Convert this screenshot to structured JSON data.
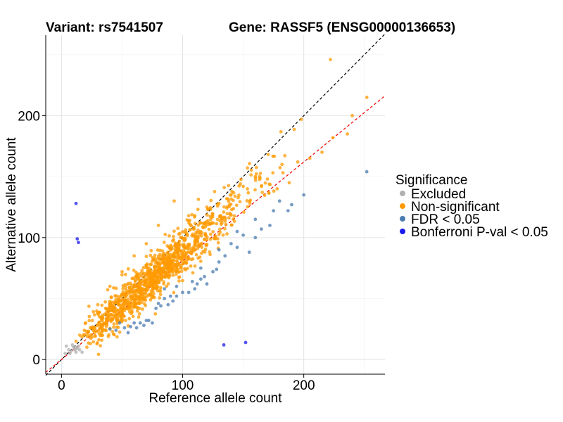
{
  "chart_data": {
    "type": "scatter",
    "title_left": "Variant: rs7541507",
    "title_right": "Gene: RASSF5 (ENSG00000136653)",
    "xlabel": "Reference allele count",
    "ylabel": "Alternative allele count",
    "xlim": [
      -13,
      267
    ],
    "ylim": [
      -12,
      266
    ],
    "x_ticks": [
      0,
      100,
      200
    ],
    "y_ticks": [
      0,
      100,
      200
    ],
    "grid": true,
    "legend": {
      "title": "Significance",
      "position": "right",
      "entries": [
        {
          "label": "Excluded",
          "color": "#b0b0b0"
        },
        {
          "label": "Non-significant",
          "color": "#ff9900"
        },
        {
          "label": "FDR < 0.05",
          "color": "#4a7bb0"
        },
        {
          "label": "Bonferroni P-val < 0.05",
          "color": "#1a1aee"
        }
      ]
    },
    "reference_lines": [
      {
        "name": "identity",
        "slope": 1.0,
        "intercept": 0,
        "color": "#000000",
        "dash": "dashed"
      },
      {
        "name": "fit",
        "slope": 0.81,
        "intercept": 0,
        "color": "#ee0000",
        "dash": "dashed"
      }
    ],
    "series": [
      {
        "name": "Excluded",
        "color": "#b0b0b0",
        "points": [
          [
            3,
            5
          ],
          [
            4,
            11
          ],
          [
            6,
            8
          ],
          [
            8,
            7
          ],
          [
            9,
            12
          ],
          [
            10,
            10
          ],
          [
            11,
            8
          ],
          [
            12,
            6
          ],
          [
            13,
            9
          ],
          [
            14,
            11
          ],
          [
            15,
            8
          ],
          [
            17,
            6
          ],
          [
            7,
            5
          ],
          [
            12,
            10
          ]
        ]
      },
      {
        "name": "Bonferroni P-val < 0.05",
        "color": "#1a1aee",
        "points": [
          [
            12,
            128
          ],
          [
            13,
            99
          ],
          [
            14,
            96
          ],
          [
            134,
            12
          ],
          [
            152,
            14
          ]
        ]
      },
      {
        "name": "FDR < 0.05",
        "color": "#4a7bb0",
        "points": [
          [
            252,
            154
          ],
          [
            200,
            135
          ],
          [
            190,
            127
          ],
          [
            187,
            122
          ],
          [
            180,
            130
          ],
          [
            175,
            122
          ],
          [
            172,
            110
          ],
          [
            165,
            107
          ],
          [
            160,
            100
          ],
          [
            155,
            88
          ],
          [
            150,
            102
          ],
          [
            145,
            92
          ],
          [
            140,
            95
          ],
          [
            135,
            85
          ],
          [
            130,
            80
          ],
          [
            128,
            74
          ],
          [
            125,
            72
          ],
          [
            120,
            62
          ],
          [
            118,
            68
          ],
          [
            115,
            66
          ],
          [
            112,
            62
          ],
          [
            110,
            58
          ],
          [
            108,
            64
          ],
          [
            105,
            55
          ],
          [
            100,
            55
          ],
          [
            95,
            52
          ],
          [
            92,
            48
          ],
          [
            90,
            52
          ],
          [
            88,
            45
          ],
          [
            85,
            50
          ],
          [
            82,
            44
          ],
          [
            80,
            46
          ],
          [
            78,
            42
          ],
          [
            75,
            30
          ],
          [
            72,
            32
          ],
          [
            70,
            32
          ],
          [
            68,
            28
          ],
          [
            65,
            30
          ],
          [
            62,
            26
          ],
          [
            60,
            30
          ],
          [
            57,
            27
          ],
          [
            55,
            22
          ],
          [
            52,
            26
          ],
          [
            48,
            30
          ],
          [
            45,
            24
          ],
          [
            40,
            25
          ],
          [
            85,
            58
          ],
          [
            95,
            60
          ],
          [
            115,
            75
          ],
          [
            130,
            90
          ],
          [
            145,
            105
          ],
          [
            160,
            115
          ]
        ]
      }
    ]
  }
}
